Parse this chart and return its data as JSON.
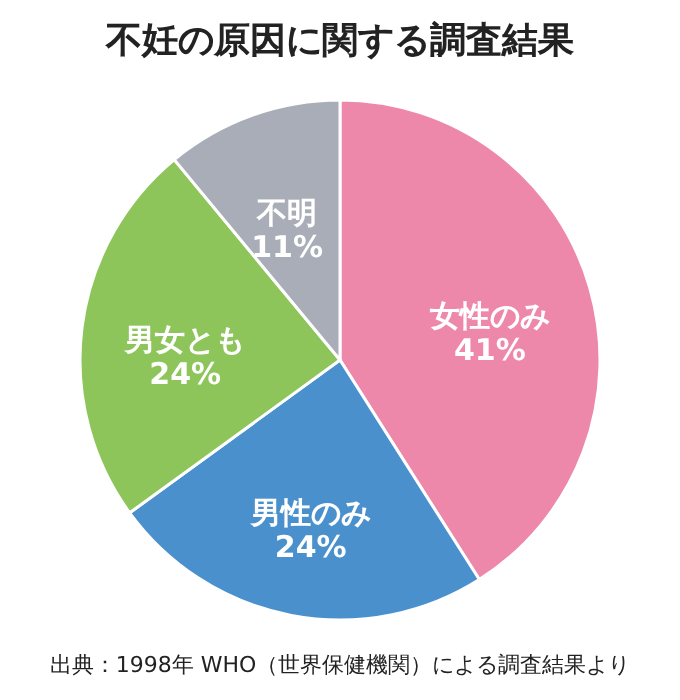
{
  "chart_data": {
    "type": "pie",
    "title": "不妊の原因に関する調査結果",
    "categories": [
      "女性のみ",
      "男性のみ",
      "男女とも",
      "不明"
    ],
    "values": [
      41,
      24,
      24,
      11
    ],
    "value_labels": [
      "41%",
      "24%",
      "24%",
      "11%"
    ],
    "colors": [
      "#ee88ab",
      "#4a90cd",
      "#8dc55b",
      "#a9adb7"
    ],
    "annotations": [
      "出典：1998年 WHO（世界保健機関）による調査結果より"
    ]
  }
}
